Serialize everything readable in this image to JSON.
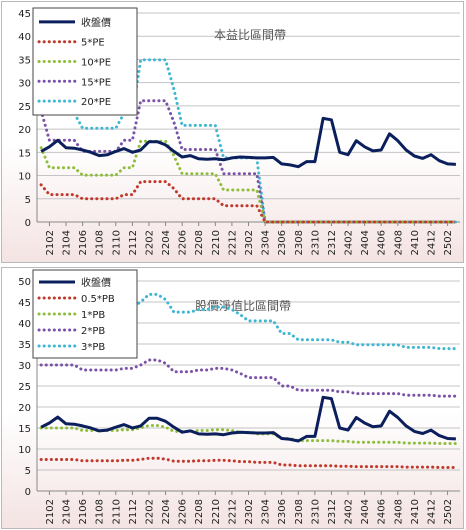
{
  "chart_data": [
    {
      "type": "line",
      "title": "本益比區間帶",
      "xlabel": "",
      "ylabel": "",
      "ylim": [
        0,
        45
      ],
      "y_ticks": [
        0,
        5,
        10,
        15,
        20,
        25,
        30,
        35,
        40,
        45
      ],
      "grid": true,
      "legend_position": "top-left",
      "x": [
        "2101",
        "2102",
        "2103",
        "2104",
        "2105",
        "2106",
        "2107",
        "2108",
        "2109",
        "2110",
        "2111",
        "2112",
        "2201",
        "2202",
        "2203",
        "2204",
        "2205",
        "2206",
        "2207",
        "2208",
        "2209",
        "2210",
        "2211",
        "2212",
        "2301",
        "2302",
        "2303",
        "2304",
        "2305",
        "2306",
        "2307",
        "2308",
        "2309",
        "2310",
        "2311",
        "2312",
        "2401",
        "2402",
        "2403",
        "2404",
        "2405",
        "2406",
        "2407",
        "2408",
        "2409",
        "2410",
        "2411",
        "2412",
        "2501",
        "2502",
        "2503"
      ],
      "x_tick_labels": [
        "2102",
        "2104",
        "2106",
        "2108",
        "2110",
        "2112",
        "2202",
        "2204",
        "2206",
        "2208",
        "2210",
        "2212",
        "2302",
        "2304",
        "2306",
        "2308",
        "2310",
        "2312",
        "2402",
        "2404",
        "2406",
        "2408",
        "2410",
        "2412",
        "2502"
      ],
      "series": [
        {
          "name": "收盤價",
          "color": "#0b1f5c",
          "style": "solid",
          "values": [
            15.2,
            16.2,
            17.6,
            16.0,
            15.9,
            15.5,
            15.0,
            14.3,
            14.5,
            15.2,
            15.8,
            15.0,
            15.5,
            17.3,
            17.3,
            16.6,
            15.2,
            14.0,
            14.3,
            13.6,
            13.5,
            13.6,
            13.4,
            13.8,
            14.0,
            13.9,
            13.8,
            13.8,
            13.9,
            12.5,
            12.3,
            11.9,
            13.0,
            13.0,
            22.3,
            22.0,
            15.0,
            14.5,
            17.5,
            16.2,
            15.3,
            15.5,
            19.0,
            17.5,
            15.5,
            14.2,
            13.7,
            14.5,
            13.2,
            12.5,
            12.4
          ]
        },
        {
          "name": "5*PE",
          "color": "#c0392b",
          "style": "dotted",
          "values": [
            8.0,
            5.9,
            5.9,
            5.9,
            5.9,
            5.0,
            5.0,
            5.0,
            5.0,
            5.0,
            5.9,
            5.9,
            8.7,
            8.7,
            8.7,
            8.7,
            7.2,
            5.0,
            5.0,
            5.0,
            5.0,
            5.0,
            3.5,
            3.5,
            3.5,
            3.5,
            3.5,
            0,
            0,
            0,
            0,
            0,
            0,
            0,
            0,
            0,
            0,
            0,
            0,
            0,
            0,
            0,
            0,
            0,
            0,
            0,
            0,
            0,
            0,
            0,
            0
          ]
        },
        {
          "name": "10*PE",
          "color": "#8fbe3c",
          "style": "dotted",
          "values": [
            16.0,
            11.7,
            11.7,
            11.7,
            11.7,
            10.1,
            10.1,
            10.1,
            10.1,
            10.1,
            11.7,
            11.7,
            17.4,
            17.4,
            17.4,
            17.4,
            14.3,
            10.4,
            10.4,
            10.4,
            10.4,
            10.4,
            6.9,
            6.9,
            6.9,
            6.9,
            6.9,
            0,
            0,
            0,
            0,
            0,
            0,
            0,
            0,
            0,
            0,
            0,
            0,
            0,
            0,
            0,
            0,
            0,
            0,
            0,
            0,
            0,
            0,
            0,
            0
          ]
        },
        {
          "name": "15*PE",
          "color": "#7a52a8",
          "style": "dotted",
          "values": [
            24.0,
            17.6,
            17.6,
            17.6,
            17.6,
            15.2,
            15.2,
            15.2,
            15.2,
            15.2,
            17.6,
            17.6,
            26.1,
            26.1,
            26.1,
            26.1,
            21.5,
            15.6,
            15.6,
            15.6,
            15.6,
            15.6,
            10.4,
            10.4,
            10.4,
            10.4,
            10.4,
            0,
            0,
            0,
            0,
            0,
            0,
            0,
            0,
            0,
            0,
            0,
            0,
            0,
            0,
            0,
            0,
            0,
            0,
            0,
            0,
            0,
            0,
            0,
            0
          ]
        },
        {
          "name": "20*PE",
          "color": "#3fb6d2",
          "style": "dotted",
          "values": [
            32.0,
            23.4,
            23.4,
            23.4,
            23.4,
            20.2,
            20.2,
            20.2,
            20.2,
            20.2,
            23.4,
            23.4,
            34.9,
            34.9,
            34.9,
            34.9,
            28.6,
            20.8,
            20.8,
            20.8,
            20.8,
            20.8,
            13.8,
            13.8,
            13.8,
            13.8,
            13.8,
            0,
            0,
            0,
            0,
            0,
            0,
            0,
            0,
            0,
            0,
            0,
            0,
            0,
            0,
            0,
            0,
            0,
            0,
            0,
            0,
            0,
            0,
            0,
            0
          ]
        }
      ]
    },
    {
      "type": "line",
      "title": "股價淨值比區間帶",
      "xlabel": "",
      "ylabel": "",
      "ylim": [
        0,
        50
      ],
      "y_ticks": [
        0,
        5,
        10,
        15,
        20,
        25,
        30,
        35,
        40,
        45,
        50
      ],
      "grid": true,
      "legend_position": "top-left",
      "x": [
        "2101",
        "2102",
        "2103",
        "2104",
        "2105",
        "2106",
        "2107",
        "2108",
        "2109",
        "2110",
        "2111",
        "2112",
        "2201",
        "2202",
        "2203",
        "2204",
        "2205",
        "2206",
        "2207",
        "2208",
        "2209",
        "2210",
        "2211",
        "2212",
        "2301",
        "2302",
        "2303",
        "2304",
        "2305",
        "2306",
        "2307",
        "2308",
        "2309",
        "2310",
        "2311",
        "2312",
        "2401",
        "2402",
        "2403",
        "2404",
        "2405",
        "2406",
        "2407",
        "2408",
        "2409",
        "2410",
        "2411",
        "2412",
        "2501",
        "2502",
        "2503"
      ],
      "x_tick_labels": [
        "2102",
        "2104",
        "2106",
        "2108",
        "2110",
        "2112",
        "2202",
        "2204",
        "2206",
        "2208",
        "2210",
        "2212",
        "2302",
        "2304",
        "2306",
        "2308",
        "2310",
        "2312",
        "2402",
        "2404",
        "2406",
        "2408",
        "2410",
        "2412",
        "2502"
      ],
      "series": [
        {
          "name": "收盤價",
          "color": "#0b1f5c",
          "style": "solid",
          "values": [
            15.2,
            16.2,
            17.6,
            16.0,
            15.9,
            15.5,
            15.0,
            14.3,
            14.5,
            15.2,
            15.8,
            15.0,
            15.5,
            17.3,
            17.3,
            16.6,
            15.2,
            14.0,
            14.3,
            13.6,
            13.5,
            13.6,
            13.4,
            13.8,
            14.0,
            13.9,
            13.8,
            13.8,
            13.9,
            12.5,
            12.3,
            11.9,
            13.0,
            13.0,
            22.3,
            22.0,
            15.0,
            14.5,
            17.5,
            16.2,
            15.3,
            15.5,
            19.0,
            17.5,
            15.5,
            14.2,
            13.7,
            14.5,
            13.2,
            12.5,
            12.4
          ]
        },
        {
          "name": "0.5*PB",
          "color": "#c0392b",
          "style": "dotted",
          "values": [
            7.5,
            7.5,
            7.5,
            7.5,
            7.5,
            7.2,
            7.2,
            7.2,
            7.2,
            7.2,
            7.3,
            7.3,
            7.5,
            7.8,
            7.8,
            7.6,
            7.1,
            7.1,
            7.1,
            7.2,
            7.2,
            7.3,
            7.3,
            7.2,
            7.0,
            7.0,
            6.8,
            6.8,
            6.8,
            6.2,
            6.2,
            6.0,
            6.0,
            6.0,
            6.0,
            6.0,
            5.9,
            5.9,
            5.8,
            5.8,
            5.8,
            5.8,
            5.8,
            5.8,
            5.7,
            5.7,
            5.7,
            5.7,
            5.6,
            5.6,
            5.6
          ]
        },
        {
          "name": "1*PB",
          "color": "#8fbe3c",
          "style": "dotted",
          "values": [
            15.0,
            15.0,
            15.0,
            15.0,
            15.0,
            14.4,
            14.4,
            14.4,
            14.4,
            14.4,
            14.6,
            14.6,
            15.0,
            15.6,
            15.6,
            15.2,
            14.2,
            14.2,
            14.2,
            14.4,
            14.4,
            14.6,
            14.6,
            14.4,
            14.0,
            14.0,
            13.6,
            13.6,
            13.6,
            12.5,
            12.5,
            12.0,
            12.0,
            12.0,
            12.0,
            12.0,
            11.8,
            11.8,
            11.6,
            11.6,
            11.6,
            11.6,
            11.6,
            11.6,
            11.4,
            11.4,
            11.4,
            11.4,
            11.3,
            11.3,
            11.3
          ]
        },
        {
          "name": "2*PB",
          "color": "#7a52a8",
          "style": "dotted",
          "values": [
            30.0,
            30.0,
            30.0,
            30.0,
            30.0,
            28.8,
            28.8,
            28.8,
            28.8,
            28.8,
            29.2,
            29.2,
            30.0,
            31.2,
            31.2,
            30.4,
            28.4,
            28.4,
            28.4,
            28.8,
            28.8,
            29.2,
            29.2,
            28.8,
            28.0,
            27.0,
            27.0,
            27.0,
            27.0,
            25.0,
            25.0,
            24.0,
            24.0,
            24.0,
            24.0,
            24.0,
            23.6,
            23.6,
            23.2,
            23.2,
            23.2,
            23.2,
            23.2,
            23.2,
            22.8,
            22.8,
            22.8,
            22.8,
            22.6,
            22.6,
            22.6
          ]
        },
        {
          "name": "3*PB",
          "color": "#3fb6d2",
          "style": "dotted",
          "values": [
            45.0,
            45.0,
            45.0,
            45.0,
            45.0,
            43.2,
            43.2,
            43.2,
            43.2,
            43.2,
            43.8,
            43.8,
            45.0,
            46.8,
            46.8,
            45.6,
            42.6,
            42.6,
            42.6,
            43.2,
            43.2,
            43.8,
            43.8,
            43.2,
            42.0,
            40.5,
            40.5,
            40.5,
            40.5,
            37.5,
            37.5,
            36.0,
            36.0,
            36.0,
            36.0,
            36.0,
            35.4,
            35.4,
            34.8,
            34.8,
            34.8,
            34.8,
            34.8,
            34.8,
            34.2,
            34.2,
            34.2,
            34.2,
            33.9,
            33.9,
            33.9
          ]
        }
      ]
    }
  ]
}
